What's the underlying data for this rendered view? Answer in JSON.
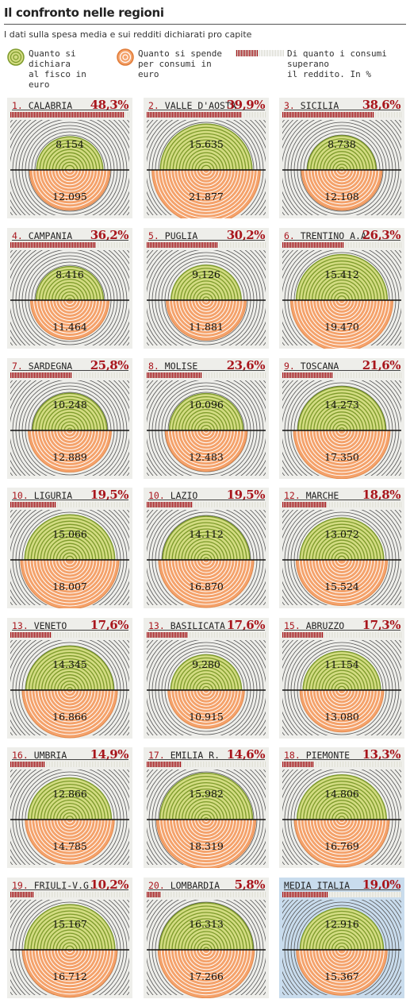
{
  "header": {
    "title": "Il confronto nelle regioni",
    "subtitle": "I dati sulla spesa media e sui redditi dichiarati pro capite"
  },
  "legend": {
    "income": "Quanto si dichiara\nal fisco in euro",
    "spending": "Quanto si spende\nper consumi in euro",
    "overrun": "Di quanto i consumi superano\nil reddito. In %"
  },
  "colors": {
    "income_fill": "#d3dc82",
    "income_ring": "#7d9a2a",
    "spending_fill": "#f4a26b",
    "spending_ring": "#ffffff",
    "accent": "#a8151c",
    "rings": "#555555",
    "panel_bg": "#eeeeea",
    "avg_bg": "#c9dced"
  },
  "chart_data": {
    "type": "semicircle-comparison",
    "series": [
      {
        "name": "Quanto si dichiara al fisco in euro",
        "key": "income"
      },
      {
        "name": "Quanto si spende per consumi in euro",
        "key": "spending"
      },
      {
        "name": "Di quanto i consumi superano il reddito. In %",
        "key": "pct"
      }
    ],
    "regions": [
      {
        "rank": "1.",
        "name": "CALABRIA",
        "pct": "48,3%",
        "pct_value": 48.3,
        "income": "8.154",
        "income_value": 8154,
        "spending": "12.095",
        "spending_value": 12095
      },
      {
        "rank": "2.",
        "name": "VALLE D'AOSTA",
        "pct": "39,9%",
        "pct_value": 39.9,
        "income": "15.635",
        "income_value": 15635,
        "spending": "21.877",
        "spending_value": 21877
      },
      {
        "rank": "3.",
        "name": "SICILIA",
        "pct": "38,6%",
        "pct_value": 38.6,
        "income": "8.738",
        "income_value": 8738,
        "spending": "12.108",
        "spending_value": 12108
      },
      {
        "rank": "4.",
        "name": "CAMPANIA",
        "pct": "36,2%",
        "pct_value": 36.2,
        "income": "8.416",
        "income_value": 8416,
        "spending": "11.464",
        "spending_value": 11464
      },
      {
        "rank": "5.",
        "name": "PUGLIA",
        "pct": "30,2%",
        "pct_value": 30.2,
        "income": "9.126",
        "income_value": 9126,
        "spending": "11.881",
        "spending_value": 11881
      },
      {
        "rank": "6.",
        "name": "TRENTINO A.A.",
        "pct": "26,3%",
        "pct_value": 26.3,
        "income": "15.412",
        "income_value": 15412,
        "spending": "19.470",
        "spending_value": 19470
      },
      {
        "rank": "7.",
        "name": "SARDEGNA",
        "pct": "25,8%",
        "pct_value": 25.8,
        "income": "10.248",
        "income_value": 10248,
        "spending": "12.889",
        "spending_value": 12889
      },
      {
        "rank": "8.",
        "name": "MOLISE",
        "pct": "23,6%",
        "pct_value": 23.6,
        "income": "10.096",
        "income_value": 10096,
        "spending": "12.483",
        "spending_value": 12483
      },
      {
        "rank": "9.",
        "name": "TOSCANA",
        "pct": "21,6%",
        "pct_value": 21.6,
        "income": "14.273",
        "income_value": 14273,
        "spending": "17.350",
        "spending_value": 17350
      },
      {
        "rank": "10.",
        "name": "LIGURIA",
        "pct": "19,5%",
        "pct_value": 19.5,
        "income": "15.066",
        "income_value": 15066,
        "spending": "18.007",
        "spending_value": 18007
      },
      {
        "rank": "10.",
        "name": "LAZIO",
        "pct": "19,5%",
        "pct_value": 19.5,
        "income": "14.112",
        "income_value": 14112,
        "spending": "16.870",
        "spending_value": 16870
      },
      {
        "rank": "12.",
        "name": "MARCHE",
        "pct": "18,8%",
        "pct_value": 18.8,
        "income": "13.072",
        "income_value": 13072,
        "spending": "15.524",
        "spending_value": 15524
      },
      {
        "rank": "13.",
        "name": "VENETO",
        "pct": "17,6%",
        "pct_value": 17.6,
        "income": "14.345",
        "income_value": 14345,
        "spending": "16.866",
        "spending_value": 16866
      },
      {
        "rank": "13.",
        "name": "BASILICATA",
        "pct": "17,6%",
        "pct_value": 17.6,
        "income": "9.280",
        "income_value": 9280,
        "spending": "10.915",
        "spending_value": 10915
      },
      {
        "rank": "15.",
        "name": "ABRUZZO",
        "pct": "17,3%",
        "pct_value": 17.3,
        "income": "11.154",
        "income_value": 11154,
        "spending": "13.080",
        "spending_value": 13080
      },
      {
        "rank": "16.",
        "name": "UMBRIA",
        "pct": "14,9%",
        "pct_value": 14.9,
        "income": "12.866",
        "income_value": 12866,
        "spending": "14.785",
        "spending_value": 14785
      },
      {
        "rank": "17.",
        "name": "EMILIA R.",
        "pct": "14,6%",
        "pct_value": 14.6,
        "income": "15.982",
        "income_value": 15982,
        "spending": "18.319",
        "spending_value": 18319
      },
      {
        "rank": "18.",
        "name": "PIEMONTE",
        "pct": "13,3%",
        "pct_value": 13.3,
        "income": "14.806",
        "income_value": 14806,
        "spending": "16.769",
        "spending_value": 16769
      },
      {
        "rank": "19.",
        "name": "FRIULI-V.G.",
        "pct": "10,2%",
        "pct_value": 10.2,
        "income": "15.167",
        "income_value": 15167,
        "spending": "16.712",
        "spending_value": 16712
      },
      {
        "rank": "20.",
        "name": "LOMBARDIA",
        "pct": "5,8%",
        "pct_value": 5.8,
        "income": "16.313",
        "income_value": 16313,
        "spending": "17.266",
        "spending_value": 17266
      },
      {
        "rank": "",
        "name": "MEDIA ITALIA",
        "pct": "19,0%",
        "pct_value": 19.0,
        "income": "12.916",
        "income_value": 12916,
        "spending": "15.367",
        "spending_value": 15367,
        "average": true
      }
    ]
  }
}
